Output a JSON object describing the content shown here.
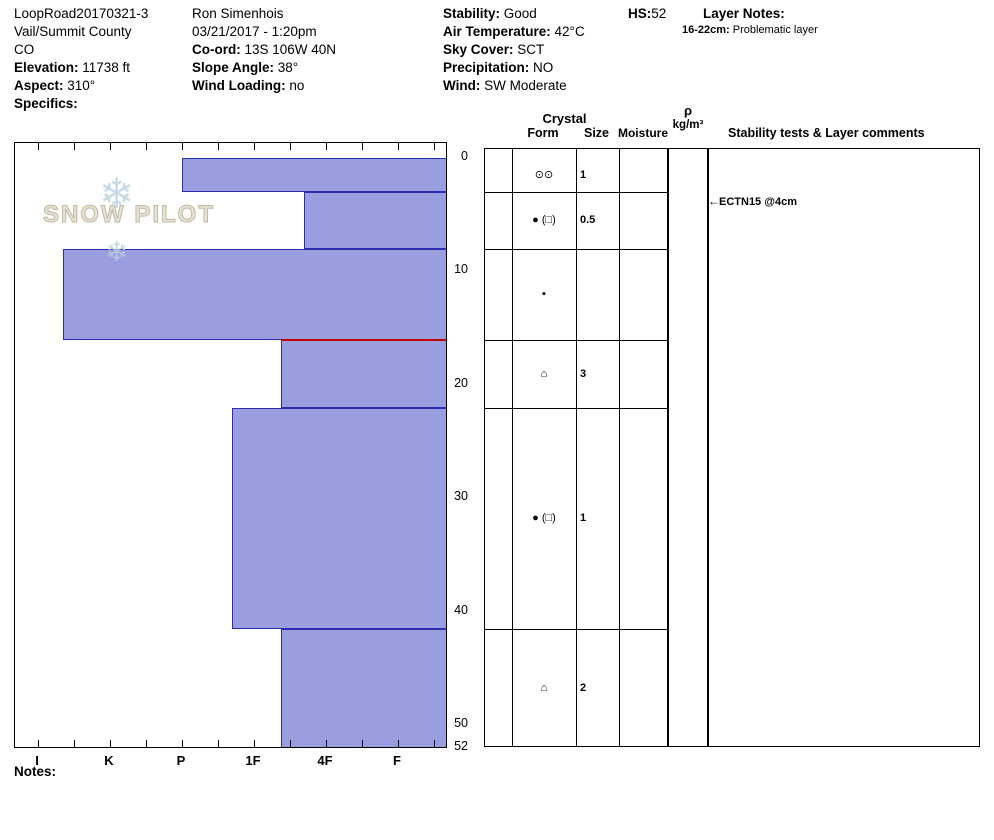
{
  "header": {
    "col1": {
      "pit_name": "LoopRoad20170321-3",
      "region": "Vail/Summit County",
      "state": "CO",
      "elevation_label": "Elevation:",
      "elevation_value": " 11738 ft",
      "aspect_label": "Aspect:",
      "aspect_value": " 310°",
      "specifics_label": "Specifics:"
    },
    "col2": {
      "observer": "Ron Simenhois",
      "datetime": "03/21/2017 - 1:20pm",
      "coord_label": "Co-ord:",
      "coord_value": " 13S 106W 40N",
      "slope_angle_label": "Slope Angle:",
      "slope_angle_value": " 38°",
      "wind_loading_label": "Wind Loading:",
      "wind_loading_value": " no"
    },
    "col3": {
      "stability_label": "Stability:",
      "stability_value": " Good",
      "air_temp_label": "Air Temperature:",
      "air_temp_value": " 42°C",
      "sky_label": "Sky Cover:",
      "sky_value": " SCT",
      "precip_label": "Precipitation:",
      "precip_value": " NO",
      "wind_label": "Wind:",
      "wind_value": " SW Moderate"
    },
    "hs_label": "HS:",
    "hs_value": "52",
    "layer_notes_label": "Layer Notes:",
    "layer_note_depth": "16-22cm:",
    "layer_note_text": " Problematic layer"
  },
  "watermark": {
    "flake": "❄",
    "text": "SNOW PILOT"
  },
  "table": {
    "crystal_header": "Crystal",
    "form_header": "Form",
    "size_header": "Size",
    "moisture_header": "Moisture",
    "rho_header": "ρ",
    "rho_units": "kg/m³",
    "comments_header": "Stability tests & Layer comments"
  },
  "notes_label": "Notes:",
  "chart_data": {
    "type": "bar",
    "orientation": "horizontal-depth-profile",
    "description": "Snow pit hand-hardness profile, hardness increases to the left",
    "hardness_axis": [
      "I",
      "K",
      "P",
      "1F",
      "4F",
      "F"
    ],
    "depth_ticks": [
      0,
      10,
      20,
      30,
      40,
      50,
      52
    ],
    "total_depth_cm": 52,
    "bar_fill": "#9b9ede",
    "bar_border": "#2d2db4",
    "failure_plane": {
      "depth_cm": 16,
      "color": "#c00000"
    },
    "layers": [
      {
        "top_cm": 0,
        "bottom_cm": 3,
        "hardness": "P",
        "hardness_num": 4.0,
        "form": "⊙⊙",
        "size": "1",
        "moisture": "",
        "density": ""
      },
      {
        "top_cm": 3,
        "bottom_cm": 8,
        "hardness": "4F+",
        "hardness_num": 2.3,
        "form": "● (□)",
        "size": "0.5",
        "moisture": "",
        "density": ""
      },
      {
        "top_cm": 8,
        "bottom_cm": 16,
        "hardness": "K-I",
        "hardness_num": 5.65,
        "form": "▪",
        "size": "",
        "moisture": "",
        "density": ""
      },
      {
        "top_cm": 16,
        "bottom_cm": 22,
        "hardness": "4F-1F",
        "hardness_num": 2.63,
        "form": "⌂",
        "size": "3",
        "moisture": "",
        "density": ""
      },
      {
        "top_cm": 22,
        "bottom_cm": 41.5,
        "hardness": "1F+",
        "hardness_num": 3.3,
        "form": "● (□)",
        "size": "1",
        "moisture": "",
        "density": ""
      },
      {
        "top_cm": 41.5,
        "bottom_cm": 52,
        "hardness": "4F-1F",
        "hardness_num": 2.63,
        "form": "⌂",
        "size": "2",
        "moisture": "",
        "density": ""
      }
    ],
    "stability_tests": [
      {
        "depth_cm": 4,
        "arrow": "←",
        "text": "ECTN15 @4cm"
      }
    ]
  }
}
